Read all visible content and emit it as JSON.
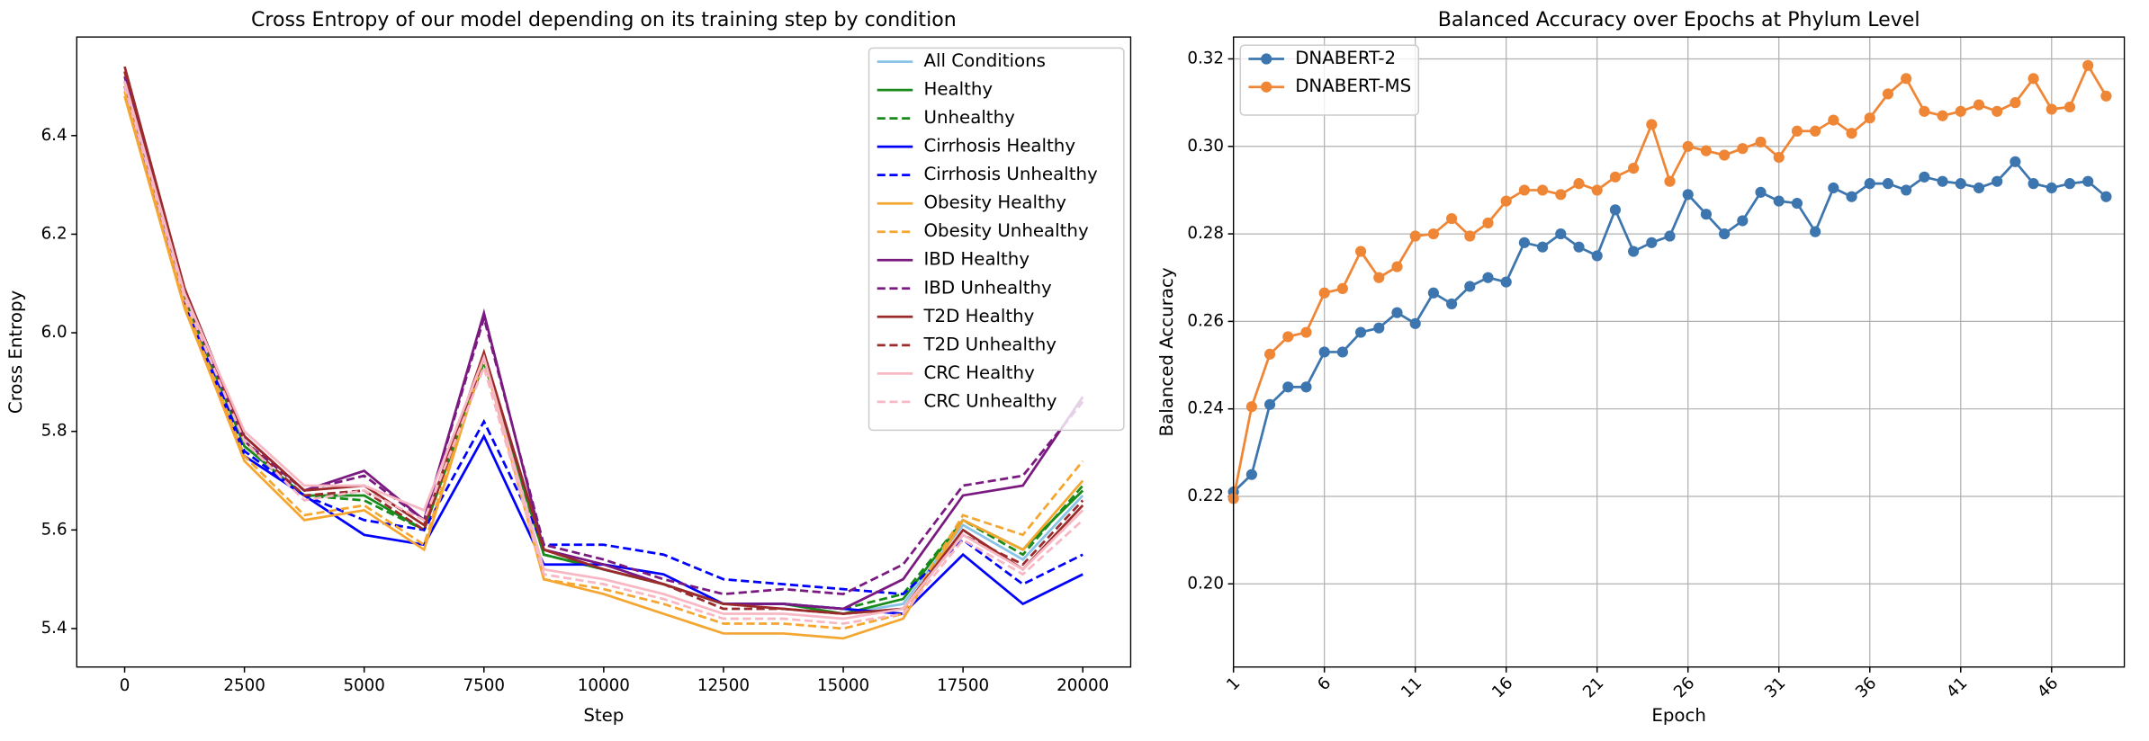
{
  "chart_data": [
    {
      "type": "line",
      "title": "Cross Entropy of our model depending on its training step by condition",
      "xlabel": "Step",
      "ylabel": "Cross Entropy",
      "x": [
        0,
        1250,
        2500,
        3750,
        5000,
        6250,
        7500,
        8750,
        10000,
        11250,
        12500,
        13750,
        15000,
        16250,
        17500,
        18750,
        20000
      ],
      "xlim": [
        -1000,
        21000
      ],
      "xticks": [
        0,
        2500,
        5000,
        7500,
        10000,
        12500,
        15000,
        17500,
        20000
      ],
      "ylim": [
        5.322,
        6.6
      ],
      "yticks": [
        5.4,
        5.6,
        5.8,
        {
          "value": 6,
          "label": "6.0"
        },
        6.2,
        6.4
      ],
      "grid": false,
      "legend": "upper right",
      "series": [
        {
          "name": "All Conditions",
          "color": "#89c4e8",
          "style": "solid",
          "values": [
            6.5,
            6.07,
            5.77,
            5.67,
            5.67,
            5.6,
            5.95,
            5.55,
            5.52,
            5.49,
            5.45,
            5.45,
            5.43,
            5.45,
            5.61,
            5.54,
            5.67
          ]
        },
        {
          "name": "Healthy",
          "color": "#1a8a1a",
          "style": "solid",
          "values": [
            6.51,
            6.07,
            5.77,
            5.67,
            5.67,
            5.6,
            5.95,
            5.55,
            5.52,
            5.49,
            5.45,
            5.45,
            5.43,
            5.46,
            5.62,
            5.56,
            5.68
          ]
        },
        {
          "name": "Unhealthy",
          "color": "#1a8a1a",
          "style": "dashed",
          "values": [
            6.5,
            6.07,
            5.77,
            5.67,
            5.66,
            5.6,
            5.94,
            5.55,
            5.52,
            5.49,
            5.45,
            5.45,
            5.44,
            5.47,
            5.62,
            5.55,
            5.69
          ]
        },
        {
          "name": "Cirrhosis Healthy",
          "color": "#0000ff",
          "style": "solid",
          "values": [
            6.5,
            6.06,
            5.75,
            5.67,
            5.59,
            5.57,
            5.79,
            5.53,
            5.53,
            5.51,
            5.45,
            5.45,
            5.44,
            5.43,
            5.55,
            5.45,
            5.51
          ]
        },
        {
          "name": "Cirrhosis Unhealthy",
          "color": "#0000ff",
          "style": "dashed",
          "values": [
            6.5,
            6.07,
            5.76,
            5.67,
            5.62,
            5.6,
            5.82,
            5.57,
            5.57,
            5.55,
            5.5,
            5.49,
            5.48,
            5.47,
            5.58,
            5.49,
            5.55
          ]
        },
        {
          "name": "Obesity Healthy",
          "color": "#f5a631",
          "style": "solid",
          "values": [
            6.48,
            6.05,
            5.74,
            5.62,
            5.64,
            5.56,
            5.95,
            5.5,
            5.47,
            5.43,
            5.39,
            5.39,
            5.38,
            5.42,
            5.62,
            5.56,
            5.7
          ]
        },
        {
          "name": "Obesity Unhealthy",
          "color": "#f5a631",
          "style": "dashed",
          "values": [
            6.49,
            6.06,
            5.75,
            5.63,
            5.65,
            5.57,
            5.96,
            5.5,
            5.48,
            5.45,
            5.41,
            5.41,
            5.4,
            5.43,
            5.63,
            5.59,
            5.74
          ]
        },
        {
          "name": "IBD Healthy",
          "color": "#7a1a80",
          "style": "solid",
          "values": [
            6.53,
            6.09,
            5.79,
            5.68,
            5.72,
            5.62,
            6.04,
            5.56,
            5.53,
            5.49,
            5.45,
            5.45,
            5.44,
            5.5,
            5.67,
            5.69,
            5.87
          ]
        },
        {
          "name": "IBD Unhealthy",
          "color": "#7a1a80",
          "style": "dashed",
          "values": [
            6.52,
            6.08,
            5.78,
            5.68,
            5.71,
            5.62,
            6.03,
            5.57,
            5.54,
            5.5,
            5.47,
            5.48,
            5.47,
            5.53,
            5.69,
            5.71,
            5.86
          ]
        },
        {
          "name": "T2D Healthy",
          "color": "#9b2b2b",
          "style": "solid",
          "values": [
            6.54,
            6.09,
            5.79,
            5.68,
            5.69,
            5.61,
            5.96,
            5.56,
            5.52,
            5.49,
            5.45,
            5.44,
            5.43,
            5.44,
            5.6,
            5.52,
            5.65
          ]
        },
        {
          "name": "T2D Unhealthy",
          "color": "#9b2b2b",
          "style": "dashed",
          "values": [
            6.53,
            6.08,
            5.78,
            5.67,
            5.68,
            5.6,
            5.95,
            5.56,
            5.52,
            5.49,
            5.44,
            5.44,
            5.43,
            5.44,
            5.59,
            5.53,
            5.66
          ]
        },
        {
          "name": "CRC Healthy",
          "color": "#f7b8c4",
          "style": "solid",
          "values": [
            6.51,
            6.08,
            5.8,
            5.69,
            5.69,
            5.64,
            5.95,
            5.52,
            5.5,
            5.47,
            5.43,
            5.43,
            5.42,
            5.44,
            5.59,
            5.52,
            5.64
          ]
        },
        {
          "name": "CRC Unhealthy",
          "color": "#f7b8c4",
          "style": "dashed",
          "values": [
            6.5,
            6.07,
            5.78,
            5.66,
            5.68,
            5.62,
            5.93,
            5.51,
            5.49,
            5.46,
            5.42,
            5.42,
            5.41,
            5.43,
            5.58,
            5.51,
            5.62
          ]
        }
      ]
    },
    {
      "type": "line",
      "title": "Balanced Accuracy over Epochs at Phylum Level",
      "xlabel": "Epoch",
      "ylabel": "Balanced Accuracy",
      "x": [
        1,
        2,
        3,
        4,
        5,
        6,
        7,
        8,
        9,
        10,
        11,
        12,
        13,
        14,
        15,
        16,
        17,
        18,
        19,
        20,
        21,
        22,
        23,
        24,
        25,
        26,
        27,
        28,
        29,
        30,
        31,
        32,
        33,
        34,
        35,
        36,
        37,
        38,
        39,
        40,
        41,
        42,
        43,
        44,
        45,
        46,
        47,
        48,
        49
      ],
      "xlim": [
        1,
        50
      ],
      "xticks": [
        1,
        6,
        11,
        16,
        21,
        26,
        31,
        36,
        41,
        46
      ],
      "xtick_rotation": 45,
      "ylim": [
        0.181,
        0.325
      ],
      "yticks": [
        {
          "value": 0.2,
          "label": "0.20"
        },
        0.22,
        0.24,
        0.26,
        0.28,
        {
          "value": 0.3,
          "label": "0.30"
        },
        0.32
      ],
      "grid": true,
      "legend": "upper left",
      "marker": "o",
      "series": [
        {
          "name": "DNABERT-2",
          "color": "#3d76af",
          "style": "solid",
          "values": [
            0.221,
            0.225,
            0.241,
            0.245,
            0.245,
            0.253,
            0.253,
            0.2575,
            0.2585,
            0.262,
            0.2595,
            0.2665,
            0.264,
            0.268,
            0.27,
            0.269,
            0.278,
            0.277,
            0.28,
            0.277,
            0.275,
            0.2855,
            0.276,
            0.278,
            0.2795,
            0.289,
            0.2845,
            0.28,
            0.283,
            0.2895,
            0.2875,
            0.287,
            0.2805,
            0.2905,
            0.2885,
            0.2915,
            0.2915,
            0.29,
            0.293,
            0.292,
            0.2915,
            0.2905,
            0.292,
            0.2965,
            0.2915,
            0.2905,
            0.2915,
            0.292,
            0.2885
          ]
        },
        {
          "name": "DNABERT-MS",
          "color": "#ef8636",
          "style": "solid",
          "values": [
            0.2195,
            0.2405,
            0.2525,
            0.2565,
            0.2575,
            0.2665,
            0.2675,
            0.276,
            0.27,
            0.2725,
            0.2795,
            0.28,
            0.2835,
            0.2795,
            0.2825,
            0.2875,
            0.29,
            0.29,
            0.289,
            0.2915,
            0.29,
            0.293,
            0.295,
            0.305,
            0.292,
            0.3,
            0.299,
            0.298,
            0.2995,
            0.301,
            0.2975,
            0.3035,
            0.3035,
            0.306,
            0.303,
            0.3065,
            0.312,
            0.3155,
            0.308,
            0.307,
            0.308,
            0.3095,
            0.308,
            0.31,
            0.3155,
            0.3085,
            0.309,
            0.3185,
            0.3115
          ]
        }
      ]
    }
  ]
}
